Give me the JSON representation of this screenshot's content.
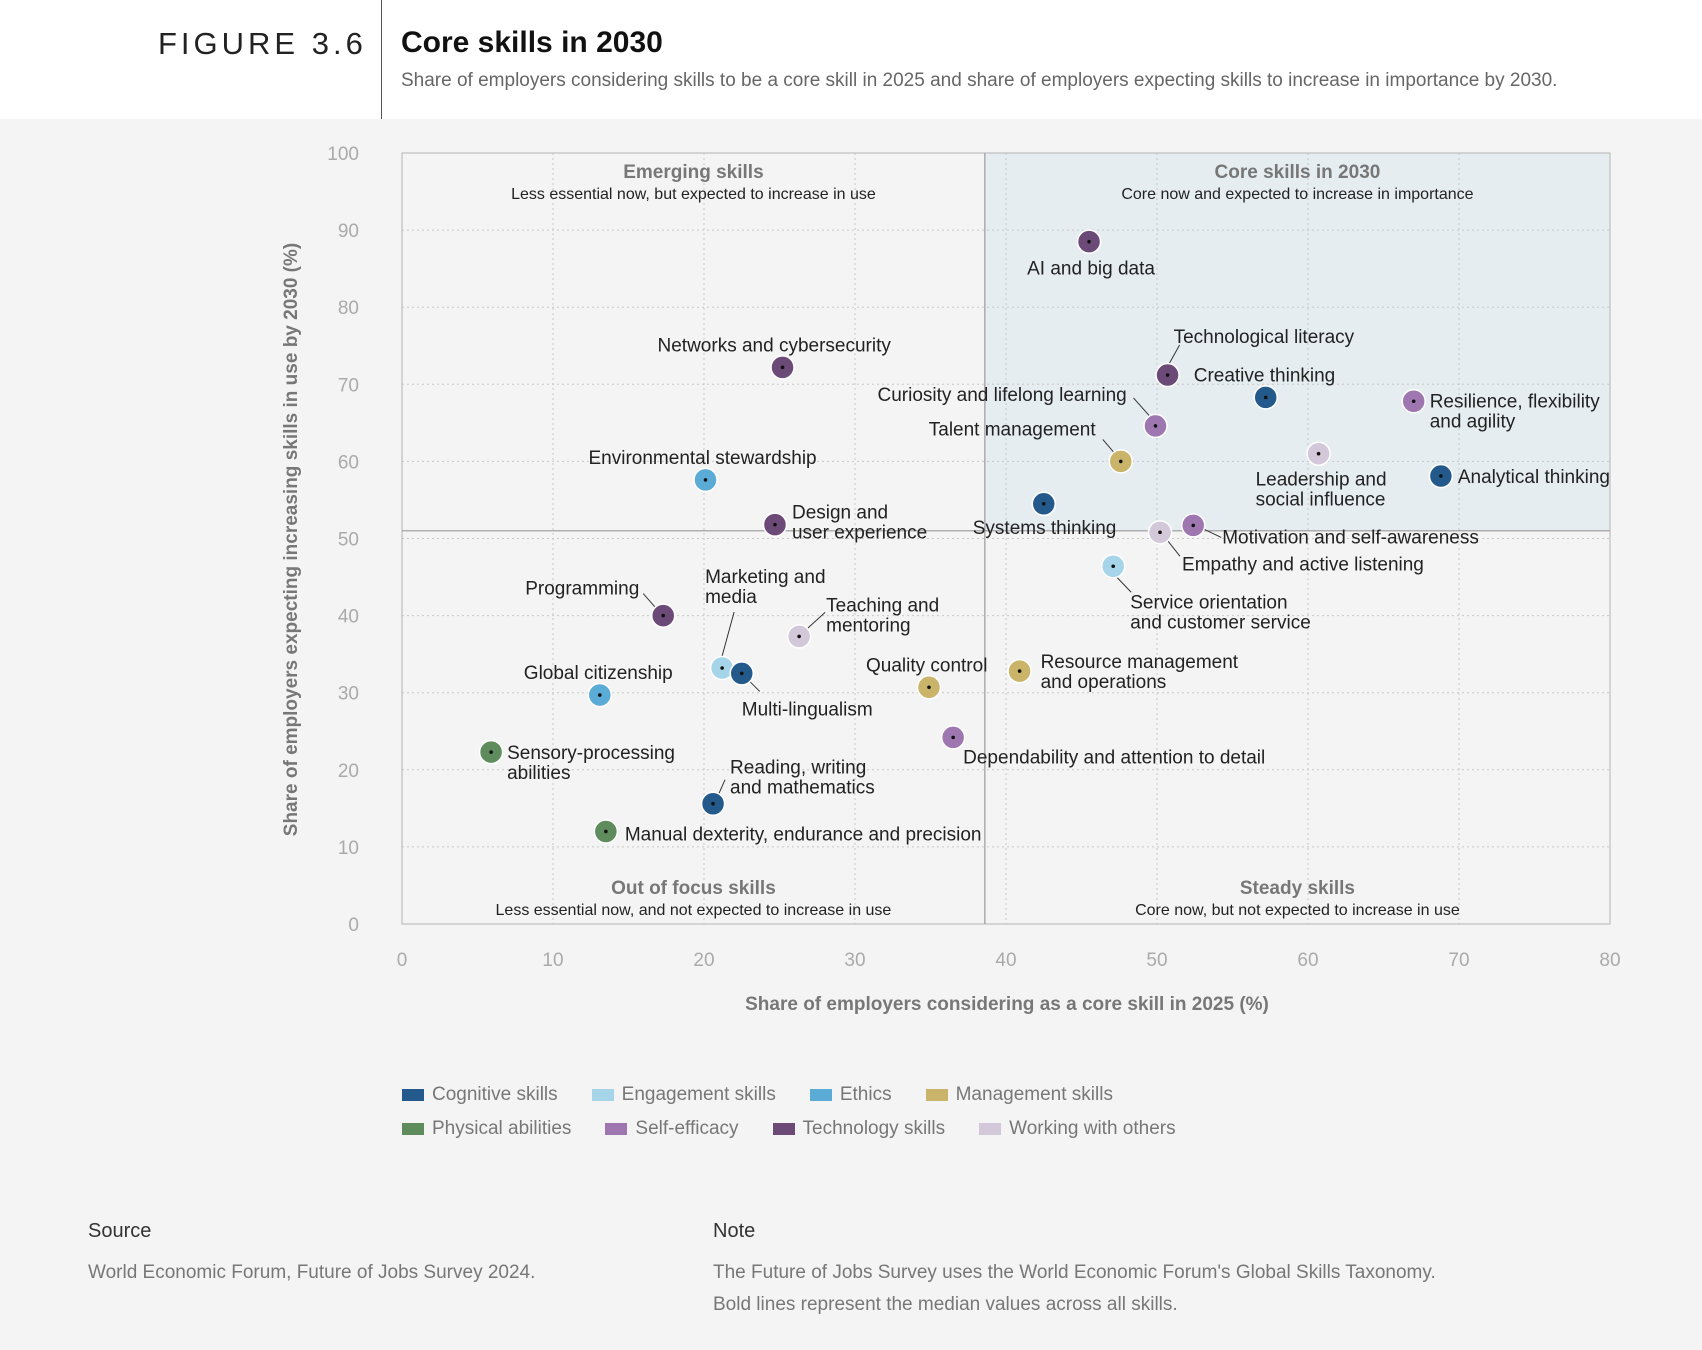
{
  "header": {
    "figure_label": "FIGURE 3.6",
    "title": "Core skills in 2030",
    "subtitle": "Share of employers considering skills to be a core skill in 2025 and share of employers expecting skills to increase in importance by 2030."
  },
  "chart_data": {
    "type": "scatter",
    "title": "Core skills in 2030",
    "xlabel": "Share of employers considering as a core skill in 2025 (%)",
    "ylabel": "Share of employers expecting increasing skills in use by 2030 (%)",
    "xlim": [
      0,
      80
    ],
    "ylim": [
      0,
      100
    ],
    "x_ticks": [
      0,
      10,
      20,
      30,
      40,
      50,
      60,
      70,
      80
    ],
    "y_ticks": [
      0,
      10,
      20,
      30,
      40,
      50,
      60,
      70,
      80,
      90,
      100
    ],
    "grid": true,
    "median_x": 38.6,
    "median_y": 51,
    "quadrants": [
      {
        "id": "emerging",
        "title": "Emerging skills",
        "desc": "Less essential now, but expected to increase in use"
      },
      {
        "id": "core",
        "title": "Core skills in 2030",
        "desc": "Core now and expected to increase in importance"
      },
      {
        "id": "out-of-focus",
        "title": "Out of focus skills",
        "desc": "Less essential now, and not expected to increase in use"
      },
      {
        "id": "steady",
        "title": "Steady skills",
        "desc": "Core now, but not expected to increase in use"
      }
    ],
    "categories": [
      {
        "name": "Cognitive skills",
        "color": "#245a8b"
      },
      {
        "name": "Engagement skills",
        "color": "#a6d4e8"
      },
      {
        "name": "Ethics",
        "color": "#5aabd6"
      },
      {
        "name": "Management skills",
        "color": "#c9b46a"
      },
      {
        "name": "Physical abilities",
        "color": "#5f8c5c"
      },
      {
        "name": "Self-efficacy",
        "color": "#9e77b0"
      },
      {
        "name": "Technology skills",
        "color": "#6b4a78"
      },
      {
        "name": "Working with others",
        "color": "#d3c8d9"
      }
    ],
    "points": [
      {
        "label": "AI and big data",
        "category": "Technology skills",
        "x": 45.5,
        "y": 88.5
      },
      {
        "label": "Technological literacy",
        "category": "Technology skills",
        "x": 50.7,
        "y": 71.2
      },
      {
        "label": "Creative thinking",
        "category": "Cognitive skills",
        "x": 57.2,
        "y": 68.3
      },
      {
        "label": "Resilience, flexibility and agility",
        "category": "Self-efficacy",
        "x": 67.0,
        "y": 67.8
      },
      {
        "label": "Curiosity and lifelong learning",
        "category": "Self-efficacy",
        "x": 49.9,
        "y": 64.6
      },
      {
        "label": "Leadership and social influence",
        "category": "Working with others",
        "x": 60.7,
        "y": 61.0
      },
      {
        "label": "Talent management",
        "category": "Management skills",
        "x": 47.6,
        "y": 60.0
      },
      {
        "label": "Analytical thinking",
        "category": "Cognitive skills",
        "x": 68.8,
        "y": 58.1
      },
      {
        "label": "Systems thinking",
        "category": "Cognitive skills",
        "x": 42.5,
        "y": 54.5
      },
      {
        "label": "Motivation and self-awareness",
        "category": "Self-efficacy",
        "x": 52.4,
        "y": 51.7
      },
      {
        "label": "Empathy and active listening",
        "category": "Working with others",
        "x": 50.2,
        "y": 50.8
      },
      {
        "label": "Service orientation and customer service",
        "category": "Engagement skills",
        "x": 47.1,
        "y": 46.4
      },
      {
        "label": "Resource management and operations",
        "category": "Management skills",
        "x": 40.9,
        "y": 32.8
      },
      {
        "label": "Quality control",
        "category": "Management skills",
        "x": 34.9,
        "y": 30.7
      },
      {
        "label": "Dependability and attention to detail",
        "category": "Self-efficacy",
        "x": 36.5,
        "y": 24.2
      },
      {
        "label": "Networks and cybersecurity",
        "category": "Technology skills",
        "x": 25.2,
        "y": 72.2
      },
      {
        "label": "Environmental stewardship",
        "category": "Ethics",
        "x": 20.1,
        "y": 57.6
      },
      {
        "label": "Design and user experience",
        "category": "Technology skills",
        "x": 24.7,
        "y": 51.8
      },
      {
        "label": "Programming",
        "category": "Technology skills",
        "x": 17.3,
        "y": 40.0
      },
      {
        "label": "Teaching and mentoring",
        "category": "Working with others",
        "x": 26.3,
        "y": 37.3
      },
      {
        "label": "Marketing and media",
        "category": "Engagement skills",
        "x": 21.2,
        "y": 33.2
      },
      {
        "label": "Multi-lingualism",
        "category": "Cognitive skills",
        "x": 22.5,
        "y": 32.5
      },
      {
        "label": "Global citizenship",
        "category": "Ethics",
        "x": 13.1,
        "y": 29.7
      },
      {
        "label": "Sensory-processing abilities",
        "category": "Physical abilities",
        "x": 5.9,
        "y": 22.3
      },
      {
        "label": "Reading, writing and mathematics",
        "category": "Cognitive skills",
        "x": 20.6,
        "y": 15.6
      },
      {
        "label": "Manual dexterity, endurance and precision",
        "category": "Physical abilities",
        "x": 13.5,
        "y": 12.0
      }
    ]
  },
  "legend": {
    "row1": [
      {
        "label": "Cognitive skills",
        "color": "#245a8b"
      },
      {
        "label": "Engagement skills",
        "color": "#a6d4e8"
      },
      {
        "label": "Ethics",
        "color": "#5aabd6"
      },
      {
        "label": "Management skills",
        "color": "#c9b46a"
      }
    ],
    "row2": [
      {
        "label": "Physical abilities",
        "color": "#5f8c5c"
      },
      {
        "label": "Self-efficacy",
        "color": "#9e77b0"
      },
      {
        "label": "Technology skills",
        "color": "#6b4a78"
      },
      {
        "label": "Working with others",
        "color": "#d3c8d9"
      }
    ]
  },
  "footer": {
    "source_heading": "Source",
    "source_text": "World Economic Forum, Future of Jobs Survey 2024.",
    "note_heading": "Note",
    "note_line1": "The Future of Jobs Survey uses the World Economic Forum's Global Skills Taxonomy.",
    "note_line2": "Bold lines represent the median values across all skills."
  }
}
